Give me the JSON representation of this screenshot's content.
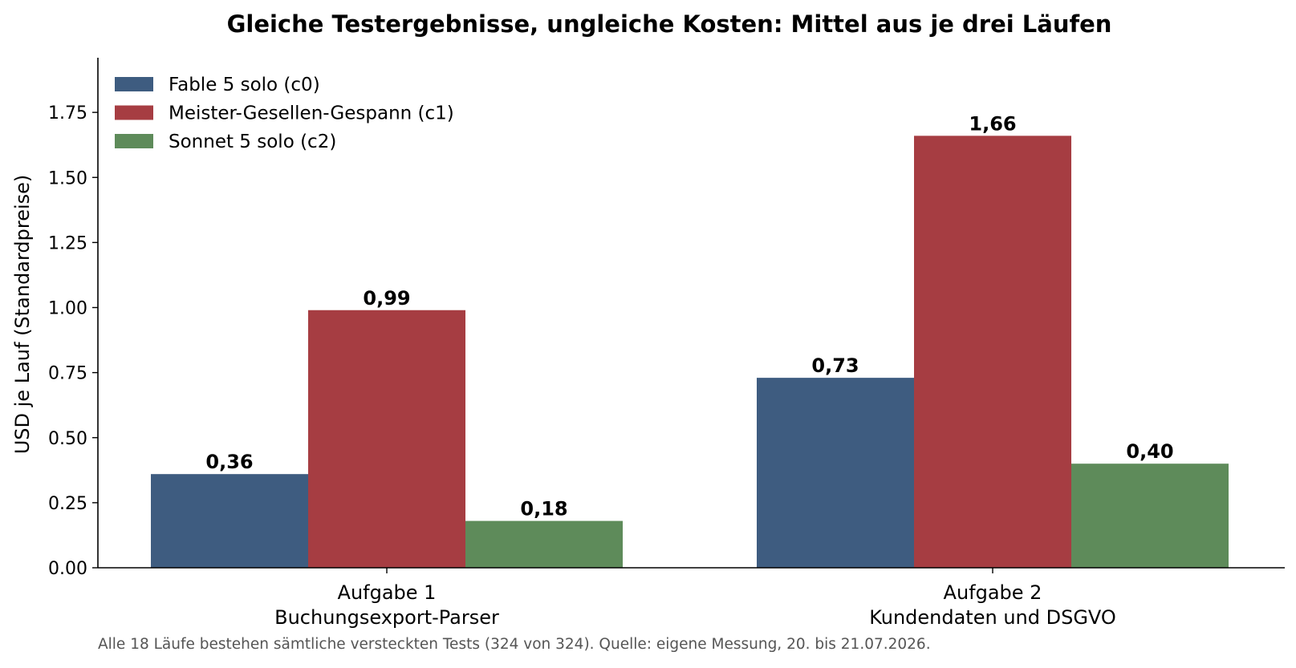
{
  "chart_data": {
    "type": "bar",
    "title": "Gleiche Testergebnisse, ungleiche Kosten: Mittel aus je drei Läufen",
    "ylabel": "USD je Lauf (Standardpreise)",
    "xlabel": "",
    "ylim": [
      0,
      1.96
    ],
    "yticks": [
      0.0,
      0.25,
      0.5,
      0.75,
      1.0,
      1.25,
      1.5,
      1.75
    ],
    "ytick_labels": [
      "0.00",
      "0.25",
      "0.50",
      "0.75",
      "1.00",
      "1.25",
      "1.50",
      "1.75"
    ],
    "categories": [
      [
        "Aufgabe 1",
        "Buchungsexport-Parser"
      ],
      [
        "Aufgabe 2",
        "Kundendaten und DSGVO"
      ]
    ],
    "series": [
      {
        "name": "Fable 5 solo (c0)",
        "color": "#3e5c80",
        "values": [
          0.36,
          0.73
        ],
        "labels": [
          "0,36",
          "0,73"
        ]
      },
      {
        "name": "Meister-Gesellen-Gespann (c1)",
        "color": "#a63d42",
        "values": [
          0.99,
          1.66
        ],
        "labels": [
          "0,99",
          "1,66"
        ]
      },
      {
        "name": "Sonnet 5 solo (c2)",
        "color": "#5e8b5a",
        "values": [
          0.18,
          0.4
        ],
        "labels": [
          "0,18",
          "0,40"
        ]
      }
    ],
    "legend_position": "top-left",
    "grid": false,
    "footnote": "Alle 18 Läufe bestehen sämtliche versteckten Tests (324 von 324). Quelle: eigene Messung, 20. bis 21.07.2026."
  }
}
